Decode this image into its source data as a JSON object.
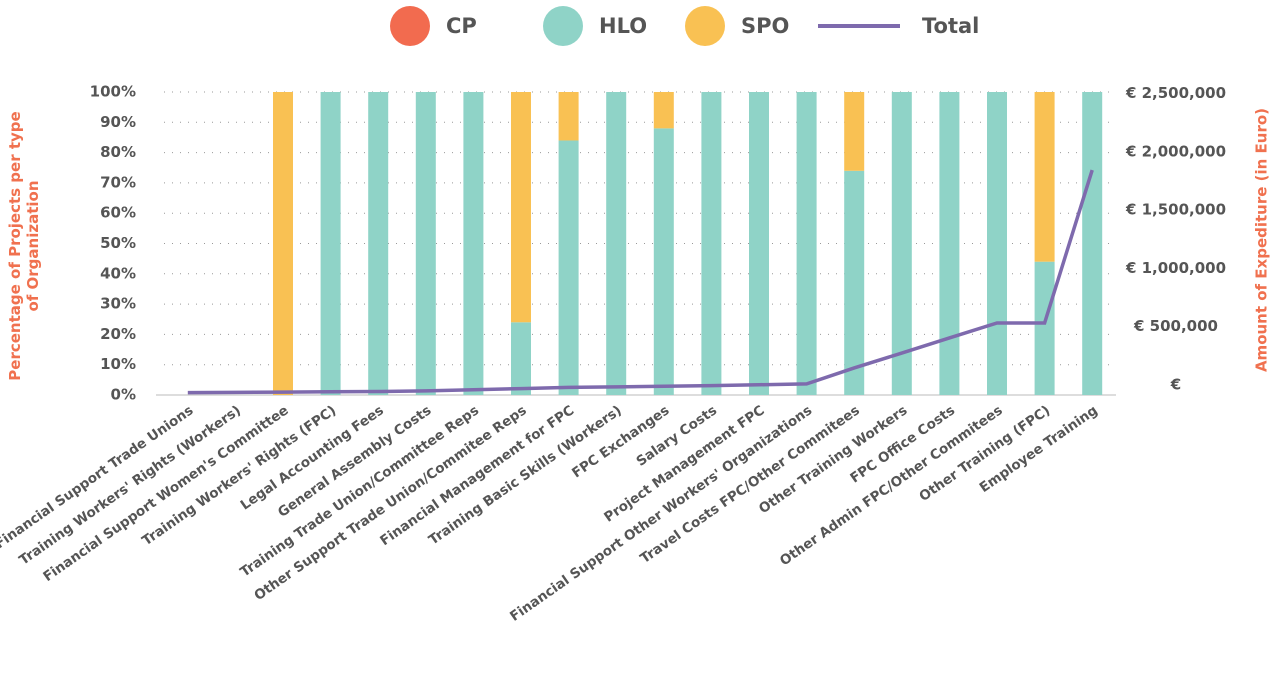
{
  "chart_data": {
    "type": "bar",
    "categories": [
      "Financial Support Trade Unions",
      "Training Workers' Rights (Workers)",
      "Financial Support Women's Committee",
      "Training Workers' Rights (FPC)",
      "Legal Accounting Fees",
      "General Assembly Costs",
      "Training Trade Union/Committee Reps",
      "Other Support Trade Union/Commitee Reps",
      "Financial Management for FPC",
      "Training Basic Skills (Workers)",
      "FPC Exchanges",
      "Salary Costs",
      "Project Management FPC",
      "Financial Support Other Workers' Organizations",
      "Travel Costs FPC/Other Commitees",
      "Other Training Workers",
      "FPC Office Costs",
      "Other Admin FPC/Other Commitees",
      "Other Training (FPC)",
      "Employee Training"
    ],
    "series": [
      {
        "name": "CP",
        "color": "#f26b4f",
        "values": [
          0,
          0,
          0,
          0,
          0,
          0,
          0,
          0,
          0,
          0,
          0,
          0,
          0,
          0,
          0,
          0,
          0,
          0,
          0,
          0
        ]
      },
      {
        "name": "HLO",
        "color": "#8fd3c7",
        "values": [
          0,
          0,
          0,
          100,
          100,
          100,
          100,
          24,
          84,
          100,
          88,
          100,
          100,
          100,
          74,
          100,
          100,
          100,
          44,
          100
        ]
      },
      {
        "name": "SPO",
        "color": "#f9c153",
        "values": [
          0,
          0,
          100,
          0,
          0,
          0,
          0,
          76,
          16,
          0,
          12,
          0,
          0,
          0,
          26,
          0,
          0,
          0,
          56,
          0
        ]
      },
      {
        "name": "Total",
        "color": "#7e6aad",
        "type": "line",
        "axis": "y2",
        "values": [
          20000,
          22000,
          25000,
          28000,
          30000,
          35000,
          45000,
          55000,
          65000,
          70000,
          75000,
          80000,
          88000,
          95000,
          232000,
          360000,
          490000,
          618000,
          618000,
          1930000
        ]
      }
    ],
    "stacked": true,
    "y_label": "Percentage of Projects per type of Organization",
    "y2_label": "Amount of Expediture (in Euro)",
    "ylim": [
      0,
      100
    ],
    "yticks": [
      {
        "value": 0,
        "label": "0%"
      },
      {
        "value": 10,
        "label": "10%"
      },
      {
        "value": 20,
        "label": "20%"
      },
      {
        "value": 30,
        "label": "30%"
      },
      {
        "value": 40,
        "label": "40%"
      },
      {
        "value": 50,
        "label": "50%"
      },
      {
        "value": 60,
        "label": "60%"
      },
      {
        "value": 70,
        "label": "70%"
      },
      {
        "value": 80,
        "label": "80%"
      },
      {
        "value": 90,
        "label": "90%"
      },
      {
        "value": 100,
        "label": "100%"
      }
    ],
    "y2lim": [
      0,
      2600000
    ],
    "y2ticks": [
      {
        "value": 0,
        "label": "€"
      },
      {
        "value": 500000,
        "label": "€ 500,000"
      },
      {
        "value": 1000000,
        "label": "€ 1,000,000"
      },
      {
        "value": 1500000,
        "label": "€ 1,500,000"
      },
      {
        "value": 2000000,
        "label": "€ 2,000,000"
      },
      {
        "value": 2500000,
        "label": "€ 2,500,000"
      }
    ],
    "grid": true,
    "legend": "top"
  }
}
